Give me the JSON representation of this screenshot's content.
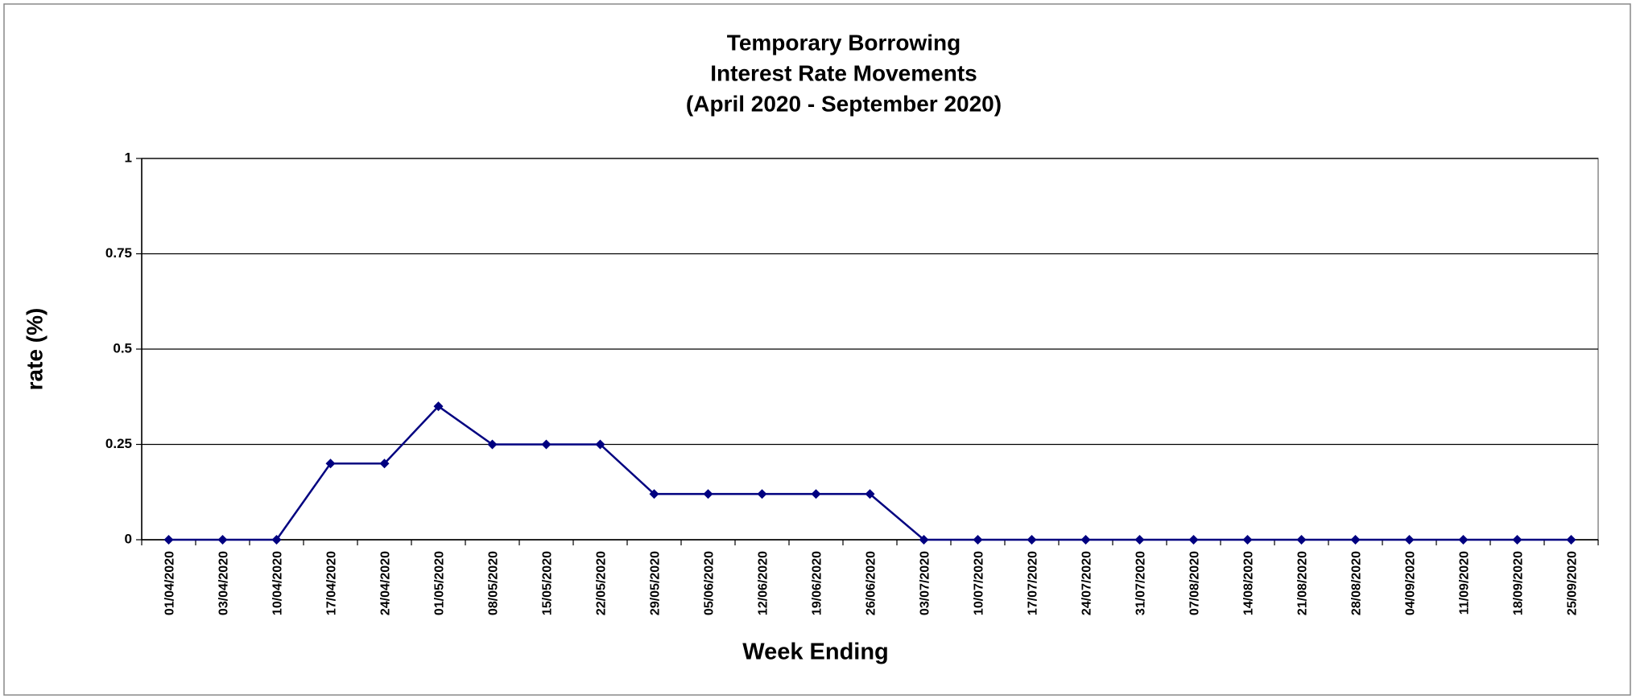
{
  "chart_data": {
    "type": "line",
    "title": [
      "Temporary Borrowing",
      "Interest Rate Movements",
      "(April 2020 - September 2020)"
    ],
    "x_label": "Week Ending",
    "y_label": "rate (%)",
    "categories": [
      "01/04/2020",
      "03/04/2020",
      "10/04/2020",
      "17/04/2020",
      "24/04/2020",
      "01/05/2020",
      "08/05/2020",
      "15/05/2020",
      "22/05/2020",
      "29/05/2020",
      "05/06/2020",
      "12/06/2020",
      "19/06/2020",
      "26/06/2020",
      "03/07/2020",
      "10/07/2020",
      "17/07/2020",
      "24/07/2020",
      "31/07/2020",
      "07/08/2020",
      "14/08/2020",
      "21/08/2020",
      "28/08/2020",
      "04/09/2020",
      "11/09/2020",
      "18/09/2020",
      "25/09/2020"
    ],
    "values": [
      0,
      0,
      0,
      0.2,
      0.2,
      0.35,
      0.25,
      0.25,
      0.25,
      0.12,
      0.12,
      0.12,
      0.12,
      0.12,
      0,
      0,
      0,
      0,
      0,
      0,
      0,
      0,
      0,
      0,
      0,
      0,
      0
    ],
    "color": "#000080",
    "ylim": [
      0,
      1
    ],
    "yticks": [
      0,
      0.25,
      0.5,
      0.75,
      1
    ],
    "grid": true
  }
}
